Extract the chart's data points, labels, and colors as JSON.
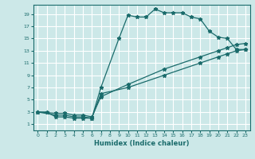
{
  "xlabel": "Humidex (Indice chaleur)",
  "bg_color": "#cce8e8",
  "grid_color": "#ffffff",
  "line_color": "#1a6b6b",
  "xlim": [
    -0.5,
    23.5
  ],
  "ylim": [
    0,
    20.5
  ],
  "xticks": [
    0,
    1,
    2,
    3,
    4,
    5,
    6,
    7,
    8,
    9,
    10,
    11,
    12,
    13,
    14,
    15,
    16,
    17,
    18,
    19,
    20,
    21,
    22,
    23
  ],
  "yticks": [
    1,
    3,
    5,
    7,
    9,
    11,
    13,
    15,
    17,
    19
  ],
  "line1_x": [
    0,
    1,
    2,
    3,
    4,
    5,
    6,
    7,
    9,
    10,
    11,
    12,
    13,
    14,
    15,
    16,
    17,
    18,
    19,
    20,
    21,
    22,
    23
  ],
  "line1_y": [
    3,
    3,
    2.2,
    2.2,
    2,
    2,
    2,
    7,
    15,
    18.8,
    18.5,
    18.5,
    19.8,
    19.2,
    19.2,
    19.2,
    18.5,
    18.2,
    16.2,
    15.2,
    15,
    13.2,
    13.2
  ],
  "line2_x": [
    0,
    2,
    3,
    4,
    5,
    6,
    7,
    10,
    14,
    18,
    20,
    21,
    22,
    23
  ],
  "line2_y": [
    3,
    2.5,
    2.5,
    2.2,
    2.2,
    2,
    6,
    7,
    9,
    11,
    12,
    12.5,
    13,
    13.2
  ],
  "line3_x": [
    0,
    2,
    3,
    4,
    5,
    6,
    7,
    10,
    14,
    18,
    20,
    21,
    22,
    23
  ],
  "line3_y": [
    3,
    2.8,
    2.8,
    2.5,
    2.5,
    2.2,
    5.5,
    7.5,
    10,
    12,
    13,
    13.5,
    14,
    14.2
  ]
}
